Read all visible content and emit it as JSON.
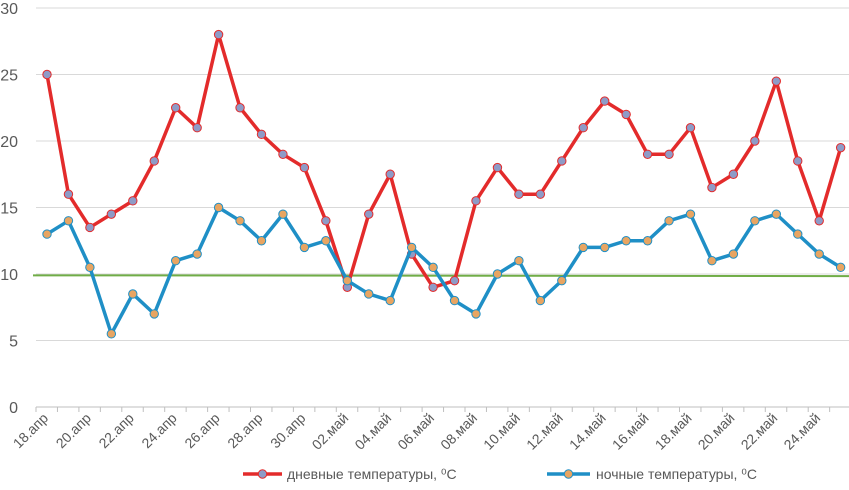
{
  "chart_data": {
    "type": "line",
    "title": "",
    "xlabel": "",
    "ylabel": "",
    "ylim": [
      0,
      30
    ],
    "yticks": [
      0,
      5,
      10,
      15,
      20,
      25,
      30
    ],
    "grid": true,
    "legend_position": "bottom",
    "categories": [
      "18.апр",
      "19.апр",
      "20.апр",
      "21.апр",
      "22.апр",
      "23.апр",
      "24.апр",
      "25.апр",
      "26.апр",
      "27.апр",
      "28.апр",
      "29.апр",
      "30.апр",
      "01.май",
      "02.май",
      "03.май",
      "04.май",
      "05.май",
      "06.май",
      "07.май",
      "08.май",
      "09.май",
      "10.май",
      "11.май",
      "12.май",
      "13.май",
      "14.май",
      "15.май",
      "16.май",
      "17.май",
      "18.май",
      "19.май",
      "20.май",
      "21.май",
      "22.май",
      "23.май",
      "24.май",
      "25.май"
    ],
    "x_tick_labels": [
      "18.апр",
      "20.апр",
      "22.апр",
      "24.апр",
      "26.апр",
      "28.апр",
      "30.апр",
      "02.май",
      "04.май",
      "06.май",
      "08.май",
      "10.май",
      "12.май",
      "14.май",
      "16.май",
      "18.май",
      "20.май",
      "22.май",
      "24.май"
    ],
    "reference_line": {
      "value": 9.9,
      "color": "#70ad47"
    },
    "series": [
      {
        "name": "дневные температуры, ⁰С",
        "color": "#e32b2b",
        "marker_fill": "#8e9bc7",
        "values": [
          25,
          16,
          13.5,
          14.5,
          15.5,
          18.5,
          22.5,
          21,
          28,
          22.5,
          20.5,
          19,
          18,
          14,
          9,
          14.5,
          17.5,
          11.5,
          9,
          9.5,
          15.5,
          18,
          16,
          16,
          18.5,
          21,
          23,
          22,
          19,
          19,
          21,
          16.5,
          17.5,
          20,
          24.5,
          18.5,
          14,
          19.5
        ]
      },
      {
        "name": "ночные температуры, ⁰С",
        "color": "#1f8fc6",
        "marker_fill": "#e8a562",
        "values": [
          13,
          14,
          10.5,
          5.5,
          8.5,
          7,
          11,
          11.5,
          15,
          14,
          12.5,
          14.5,
          12,
          12.5,
          9.5,
          8.5,
          8,
          12,
          10.5,
          8,
          7,
          10,
          11,
          8,
          9.5,
          12,
          12,
          12.5,
          12.5,
          14,
          14.5,
          11,
          11.5,
          14,
          14.5,
          13,
          11.5,
          10.5
        ]
      }
    ],
    "colors": {
      "gridline": "#d9d9d9",
      "axis": "#bfbfbf"
    }
  }
}
